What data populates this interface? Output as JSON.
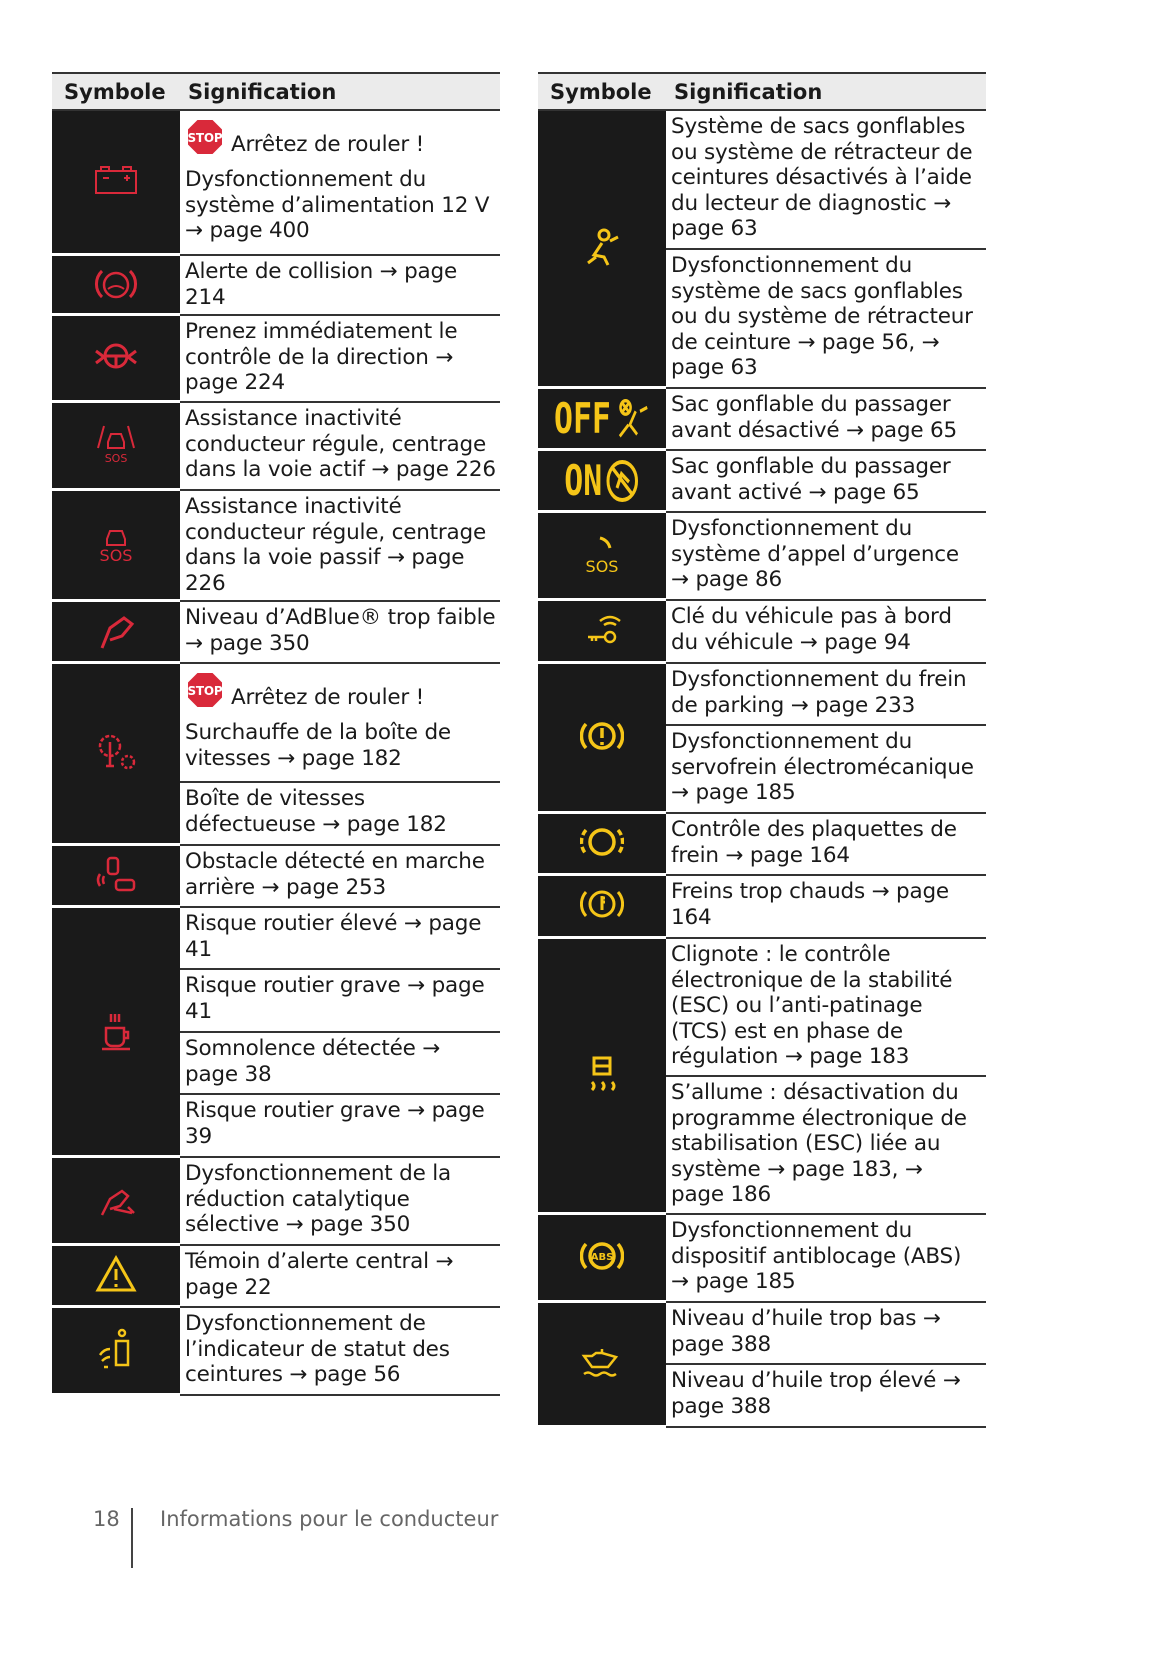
{
  "headers": {
    "symbol": "Symbole",
    "meaning": "Signification"
  },
  "stop_sign_text": "STOP",
  "colors": {
    "red": "#d9293a",
    "yellow": "#f5c518",
    "cell_bg": "#1a1a1a"
  },
  "left": [
    {
      "icon": "battery-icon",
      "color": "red",
      "stop": "Arrêtez de rouler !",
      "text": "Dysfonctionnement du système d’alimentation 12 V → page 400"
    },
    {
      "icon": "collision-alert-icon",
      "color": "red",
      "text": "Alerte de collision → page 214"
    },
    {
      "icon": "steering-wheel-hands-icon",
      "color": "red",
      "text": "Prenez immédiatement le contrôle de la direction → page 224"
    },
    {
      "icon": "car-lane-sos-icon",
      "color": "red",
      "text": "Assistance inactivité conducteur régule, centrage dans la voie actif → page 226"
    },
    {
      "icon": "car-sos-icon",
      "color": "red",
      "text": "Assistance inactivité conducteur régule, centrage dans la voie passif → page 226"
    },
    {
      "icon": "adblue-nozzle-icon",
      "color": "red",
      "text": "Niveau d’AdBlue® trop faible → page 350"
    },
    {
      "icon": "transmission-gear-icon",
      "color": "red",
      "stop": "Arrêtez de rouler !",
      "texts": [
        "Surchauffe de la boîte de vitesses → page 182",
        "Boîte de vitesses défectueuse → page 182"
      ]
    },
    {
      "icon": "rear-obstacle-icon",
      "color": "red",
      "text": "Obstacle détecté en marche arrière → page 253"
    },
    {
      "icon": "coffee-cup-icon",
      "color": "red",
      "texts": [
        "Risque routier élevé → page 41",
        "Risque routier grave → page 41",
        "Somnolence détectée → page 38",
        "Risque routier grave → page 39"
      ]
    },
    {
      "icon": "scr-nozzle-wrench-icon",
      "color": "red",
      "text": "Dysfonctionnement de la réduction catalytique sélective → page 350"
    },
    {
      "icon": "warning-triangle-icon",
      "color": "yellow",
      "text": "Témoin d’alerte central → page 22"
    },
    {
      "icon": "seatbelt-status-icon",
      "color": "yellow",
      "text": "Dysfonctionnement de l’indicateur de statut des ceintures → page 56"
    }
  ],
  "right": [
    {
      "icon": "airbag-person-icon",
      "color": "yellow",
      "texts": [
        "Système de sacs gonflables ou système de rétracteur de ceintures désactivés à l’aide du lecteur de diagnostic → page 63",
        "Dysfonctionnement du système de sacs gonflables ou du système de rétracteur de ceinture → page 56, → page 63"
      ]
    },
    {
      "icon": "passenger-airbag-off-icon",
      "color": "yellow",
      "label": "OFF",
      "text": "Sac gonflable du passager avant désactivé → page 65"
    },
    {
      "icon": "passenger-airbag-on-icon",
      "color": "yellow",
      "label": "ON",
      "text": "Sac gonflable du passager avant activé → page 65"
    },
    {
      "icon": "emergency-call-sos-icon",
      "color": "yellow",
      "sos": "SOS",
      "text": "Dysfonctionnement du système d’appel d’urgence → page 86"
    },
    {
      "icon": "key-signal-icon",
      "color": "yellow",
      "text": "Clé du véhicule pas à bord du véhicule → page 94"
    },
    {
      "icon": "parking-brake-icon",
      "color": "yellow",
      "texts": [
        "Dysfonctionnement du frein de parking → page 233",
        "Dysfonctionnement du servofrein électromécanique → page 185"
      ]
    },
    {
      "icon": "brake-pads-icon",
      "color": "yellow",
      "text": "Contrôle des plaquettes de frein → page 164"
    },
    {
      "icon": "brake-temperature-icon",
      "color": "yellow",
      "text": "Freins trop chauds → page 164"
    },
    {
      "icon": "stability-control-icon",
      "color": "yellow",
      "texts": [
        "Clignote : le contrôle électronique de la stabilité (ESC) ou l’anti-patinage (TCS) est en phase de régulation → page 183",
        "S’allume : désactivation du programme électronique de stabilisation (ESC) liée au système → page 183, → page 186"
      ]
    },
    {
      "icon": "abs-icon",
      "color": "yellow",
      "abs": "ABS",
      "text": "Dysfonctionnement du dispositif antiblocage (ABS) → page 185"
    },
    {
      "icon": "oil-can-icon",
      "color": "yellow",
      "texts": [
        "Niveau d’huile trop bas → page 388",
        "Niveau d’huile trop élevé → page 388"
      ]
    }
  ],
  "footer": {
    "page_number": "18",
    "section": "Informations pour le conducteur"
  }
}
